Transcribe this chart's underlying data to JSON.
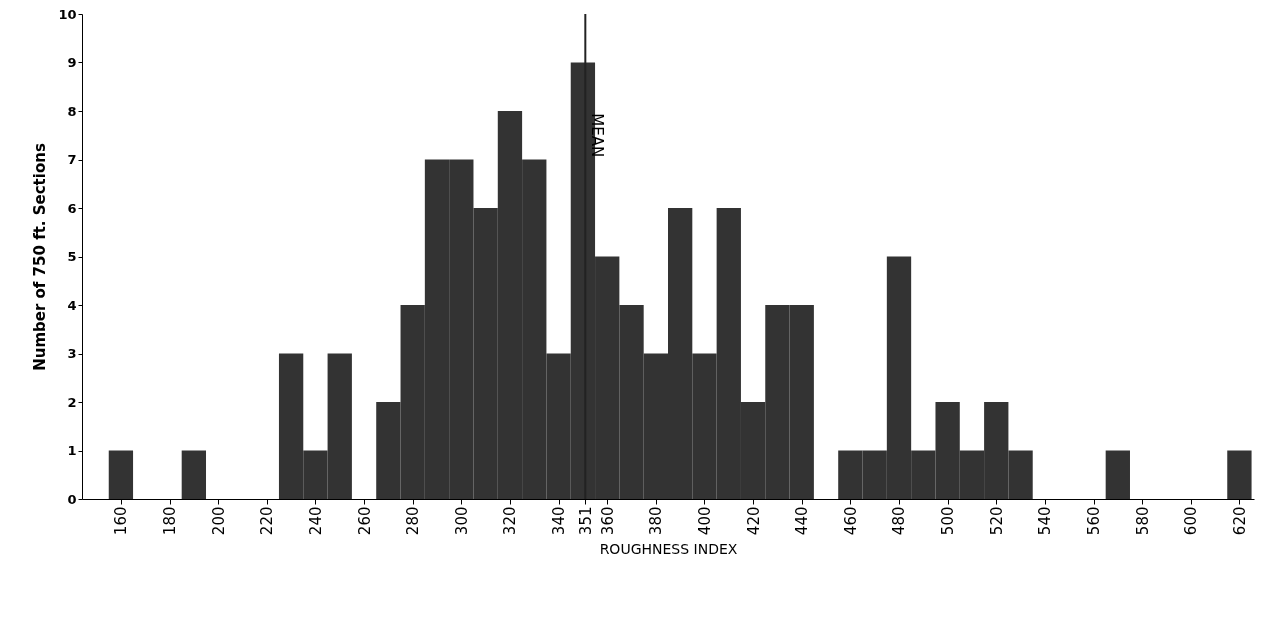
{
  "chart_data": {
    "type": "histogram",
    "xlabel": "ROUGHNESS INDEX",
    "ylabel": "Number of 750 ft. Sections",
    "bins": [
      155,
      165,
      175,
      185,
      195,
      205,
      215,
      225,
      235,
      245,
      255,
      265,
      275,
      285,
      295,
      305,
      315,
      325,
      335,
      345,
      355,
      365,
      375,
      385,
      395,
      405,
      415,
      425,
      435,
      445,
      455,
      465,
      475,
      485,
      495,
      505,
      515,
      525,
      535,
      545,
      555,
      565,
      575,
      585,
      595,
      605,
      615,
      625
    ],
    "values": [
      1,
      0,
      0,
      1,
      0,
      0,
      0,
      3,
      1,
      3,
      0,
      2,
      4,
      7,
      7,
      6,
      8,
      7,
      3,
      9,
      5,
      4,
      3,
      6,
      3,
      6,
      2,
      4,
      4,
      0,
      1,
      1,
      5,
      1,
      2,
      1,
      2,
      1,
      0,
      0,
      0,
      1,
      0,
      0,
      0,
      0,
      1
    ],
    "color": "#333333",
    "xlim": [
      144,
      626
    ],
    "xticks": [
      160,
      180,
      200,
      220,
      240,
      260,
      280,
      300,
      320,
      340,
      {
        "value": 351,
        "label": "351"
      },
      360,
      380,
      400,
      420,
      440,
      460,
      480,
      500,
      520,
      540,
      560,
      580,
      600,
      620
    ],
    "ylim": [
      0,
      10
    ],
    "yticks": [
      0,
      1,
      2,
      3,
      4,
      5,
      6,
      7,
      8,
      9,
      10
    ],
    "ref_lines": [
      {
        "axis": "x",
        "value": 351,
        "label": "MEAN",
        "color": "#222222"
      }
    ]
  }
}
